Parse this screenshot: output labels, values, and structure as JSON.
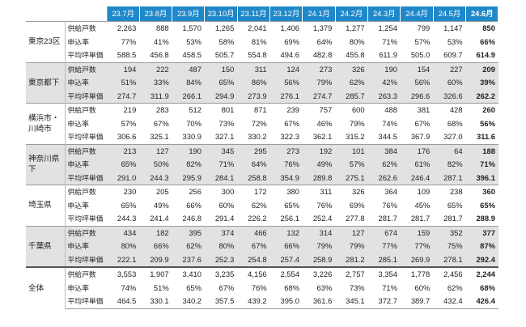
{
  "months": [
    "23.7月",
    "23.8月",
    "23.9月",
    "23.10月",
    "23.11月",
    "23.12月",
    "24.1月",
    "24.2月",
    "24.3月",
    "24.4月",
    "24.5月",
    "24.6月"
  ],
  "metrics": [
    "供給戸数",
    "申込率",
    "平均坪単価"
  ],
  "regions": [
    {
      "name": "東京23区",
      "style": "white",
      "rows": [
        [
          "2,263",
          "888",
          "1,570",
          "1,265",
          "2,041",
          "1,406",
          "1,379",
          "1,277",
          "1,254",
          "799",
          "1,147",
          "850"
        ],
        [
          "77%",
          "41%",
          "53%",
          "58%",
          "81%",
          "69%",
          "64%",
          "80%",
          "71%",
          "57%",
          "53%",
          "66%"
        ],
        [
          "588.5",
          "456.8",
          "458.5",
          "505.7",
          "554.8",
          "494.6",
          "482.8",
          "455.8",
          "611.9",
          "505.0",
          "609.7",
          "614.9"
        ]
      ]
    },
    {
      "name": "東京都下",
      "style": "gray",
      "rows": [
        [
          "194",
          "222",
          "487",
          "150",
          "311",
          "124",
          "273",
          "326",
          "190",
          "154",
          "227",
          "209"
        ],
        [
          "51%",
          "33%",
          "84%",
          "65%",
          "86%",
          "56%",
          "79%",
          "62%",
          "42%",
          "56%",
          "60%",
          "39%"
        ],
        [
          "274.7",
          "311.9",
          "266.1",
          "294.9",
          "273.9",
          "276.1",
          "274.7",
          "285.7",
          "263.3",
          "296.6",
          "326.6",
          "262.2"
        ]
      ]
    },
    {
      "name": "横浜市・川崎市",
      "style": "white",
      "rows": [
        [
          "219",
          "283",
          "512",
          "801",
          "871",
          "239",
          "757",
          "600",
          "488",
          "381",
          "428",
          "260"
        ],
        [
          "57%",
          "67%",
          "70%",
          "73%",
          "72%",
          "67%",
          "46%",
          "79%",
          "74%",
          "67%",
          "68%",
          "56%"
        ],
        [
          "306.6",
          "325.1",
          "330.9",
          "327.1",
          "330.2",
          "322.3",
          "362.1",
          "315.2",
          "344.5",
          "367.9",
          "327.0",
          "311.6"
        ]
      ]
    },
    {
      "name": "神奈川県下",
      "style": "gray",
      "rows": [
        [
          "213",
          "127",
          "190",
          "345",
          "295",
          "273",
          "192",
          "101",
          "384",
          "176",
          "64",
          "188"
        ],
        [
          "65%",
          "50%",
          "82%",
          "71%",
          "64%",
          "76%",
          "49%",
          "57%",
          "62%",
          "61%",
          "82%",
          "71%"
        ],
        [
          "291.0",
          "244.3",
          "295.9",
          "284.1",
          "258.8",
          "354.9",
          "289.8",
          "275.1",
          "262.6",
          "246.4",
          "287.1",
          "396.1"
        ]
      ]
    },
    {
      "name": "埼玉県",
      "style": "white",
      "rows": [
        [
          "230",
          "205",
          "256",
          "300",
          "172",
          "380",
          "311",
          "326",
          "364",
          "109",
          "238",
          "360"
        ],
        [
          "65%",
          "49%",
          "66%",
          "60%",
          "62%",
          "65%",
          "76%",
          "69%",
          "76%",
          "45%",
          "65%",
          "65%"
        ],
        [
          "244.3",
          "241.4",
          "246.8",
          "291.4",
          "226.2",
          "256.1",
          "252.4",
          "277.8",
          "281.7",
          "281.7",
          "281.7",
          "288.9"
        ]
      ]
    },
    {
      "name": "千葉県",
      "style": "gray",
      "rows": [
        [
          "434",
          "182",
          "395",
          "374",
          "466",
          "132",
          "314",
          "127",
          "674",
          "159",
          "352",
          "377"
        ],
        [
          "80%",
          "66%",
          "62%",
          "80%",
          "67%",
          "66%",
          "79%",
          "79%",
          "77%",
          "77%",
          "75%",
          "87%"
        ],
        [
          "222.1",
          "209.9",
          "237.6",
          "252.3",
          "254.8",
          "257.4",
          "258.9",
          "281.2",
          "285.1",
          "269.9",
          "278.1",
          "292.4"
        ]
      ]
    },
    {
      "name": "全体",
      "style": "total",
      "rows": [
        [
          "3,553",
          "1,907",
          "3,410",
          "3,235",
          "4,156",
          "2,554",
          "3,226",
          "2,757",
          "3,354",
          "1,778",
          "2,456",
          "2,244"
        ],
        [
          "74%",
          "51%",
          "65%",
          "67%",
          "76%",
          "68%",
          "63%",
          "73%",
          "71%",
          "60%",
          "62%",
          "68%"
        ],
        [
          "464.5",
          "330.1",
          "340.2",
          "357.5",
          "439.2",
          "395.0",
          "361.6",
          "345.1",
          "372.7",
          "389.7",
          "432.4",
          "426.4"
        ]
      ]
    }
  ]
}
